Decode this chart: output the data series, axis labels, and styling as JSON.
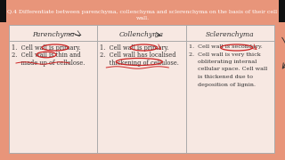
{
  "title_line1": "Q.4 Differentiate between parenchyma, collenchyma and sclerenchyma on the basis of their cell",
  "title_line2": "wall.",
  "title_bg": "#e8957a",
  "outer_bg": "#e8957a",
  "table_bg": "#f7e8e2",
  "border_color": "#aaaaaa",
  "text_color": "#333333",
  "headers": [
    "Parenchyma",
    "Collenchyma",
    "Sclerenchyma"
  ],
  "col1_line1": "1.  Cell wall is primary.",
  "col1_line2": "2.  Cell wall is thin and",
  "col1_line3": "     made up of cellulose.",
  "col2_line1": "1.  Cell wall is primary.",
  "col2_line2": "2.  Cell wall has localised",
  "col2_line3": "     thickening of cellulose.",
  "col3_line1": "1.  Cell wall is secondary.",
  "col3_line2": "2.  Cell wall is very thick",
  "col3_line3": "     obliterating internal",
  "col3_line4": "     cellular space. Cell wall",
  "col3_line5": "     is thickened due to",
  "col3_line6": "     deposition of lignin.",
  "circle_color": "#cc2222",
  "font_family": "DejaVu Serif"
}
